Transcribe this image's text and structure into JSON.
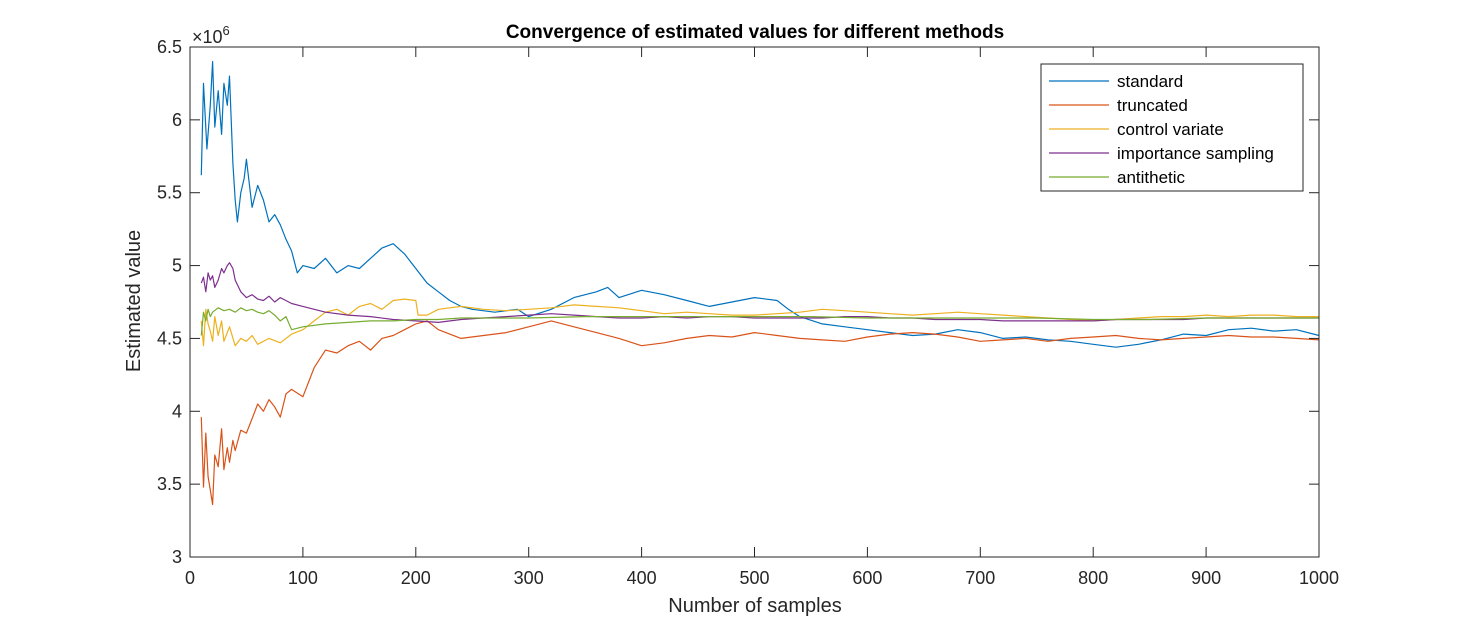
{
  "chart_data": {
    "type": "line",
    "title": "Convergence of estimated values for different methods",
    "xlabel": "Number of samples",
    "ylabel": "Estimated value",
    "y_exponent_label": {
      "base": "×10",
      "exp": "6"
    },
    "xlim": [
      0,
      1000
    ],
    "ylim": [
      3000000,
      6500000
    ],
    "xticks": [
      0,
      100,
      200,
      300,
      400,
      500,
      600,
      700,
      800,
      900,
      1000
    ],
    "xtick_labels": [
      "0",
      "100",
      "200",
      "300",
      "400",
      "500",
      "600",
      "700",
      "800",
      "900",
      "1000"
    ],
    "yticks": [
      3000000,
      3500000,
      4000000,
      4500000,
      5000000,
      5500000,
      6000000,
      6500000
    ],
    "ytick_labels": [
      "3",
      "3.5",
      "4",
      "4.5",
      "5",
      "5.5",
      "6",
      "6.5"
    ],
    "grid": false,
    "legend_position": "top-right",
    "series": [
      {
        "name": "standard",
        "color": "#0072BD",
        "x": [
          10,
          12,
          15,
          18,
          20,
          22,
          25,
          28,
          30,
          33,
          35,
          38,
          40,
          42,
          45,
          48,
          50,
          55,
          60,
          65,
          70,
          75,
          80,
          85,
          90,
          95,
          100,
          110,
          120,
          130,
          140,
          150,
          160,
          170,
          180,
          190,
          200,
          210,
          220,
          230,
          240,
          250,
          270,
          290,
          300,
          320,
          340,
          360,
          370,
          380,
          400,
          420,
          440,
          460,
          480,
          500,
          520,
          530,
          540,
          560,
          580,
          600,
          620,
          640,
          660,
          680,
          700,
          720,
          740,
          760,
          780,
          800,
          820,
          840,
          860,
          880,
          900,
          920,
          940,
          960,
          980,
          1000
        ],
        "y": [
          5620000,
          6250000,
          5800000,
          6100000,
          6400000,
          5950000,
          6200000,
          5900000,
          6250000,
          6100000,
          6300000,
          5700000,
          5450000,
          5300000,
          5500000,
          5600000,
          5730000,
          5400000,
          5550000,
          5450000,
          5300000,
          5350000,
          5280000,
          5180000,
          5100000,
          4950000,
          5000000,
          4980000,
          5050000,
          4950000,
          5000000,
          4980000,
          5050000,
          5120000,
          5150000,
          5080000,
          4980000,
          4880000,
          4820000,
          4760000,
          4720000,
          4700000,
          4680000,
          4700000,
          4650000,
          4700000,
          4780000,
          4820000,
          4850000,
          4780000,
          4830000,
          4800000,
          4760000,
          4720000,
          4750000,
          4780000,
          4760000,
          4700000,
          4650000,
          4600000,
          4580000,
          4560000,
          4540000,
          4520000,
          4530000,
          4560000,
          4540000,
          4500000,
          4510000,
          4490000,
          4480000,
          4460000,
          4440000,
          4460000,
          4490000,
          4530000,
          4520000,
          4560000,
          4570000,
          4550000,
          4560000,
          4520000
        ]
      },
      {
        "name": "truncated",
        "color": "#D95319",
        "x": [
          10,
          12,
          14,
          16,
          18,
          20,
          22,
          25,
          28,
          30,
          33,
          35,
          38,
          40,
          45,
          50,
          55,
          60,
          65,
          70,
          75,
          80,
          85,
          90,
          100,
          110,
          120,
          130,
          140,
          150,
          160,
          170,
          180,
          190,
          200,
          210,
          220,
          240,
          260,
          280,
          300,
          320,
          340,
          360,
          380,
          400,
          420,
          440,
          460,
          480,
          500,
          520,
          540,
          560,
          580,
          600,
          620,
          640,
          660,
          680,
          700,
          720,
          740,
          760,
          780,
          800,
          820,
          840,
          860,
          880,
          900,
          920,
          940,
          960,
          980,
          1000
        ],
        "y": [
          3960000,
          3480000,
          3850000,
          3550000,
          3460000,
          3360000,
          3700000,
          3620000,
          3880000,
          3600000,
          3750000,
          3650000,
          3800000,
          3730000,
          3870000,
          3850000,
          3950000,
          4050000,
          4000000,
          4080000,
          4030000,
          3960000,
          4120000,
          4150000,
          4100000,
          4300000,
          4420000,
          4400000,
          4450000,
          4480000,
          4420000,
          4500000,
          4520000,
          4560000,
          4600000,
          4620000,
          4560000,
          4500000,
          4520000,
          4540000,
          4580000,
          4620000,
          4580000,
          4540000,
          4500000,
          4450000,
          4470000,
          4500000,
          4520000,
          4510000,
          4540000,
          4520000,
          4500000,
          4490000,
          4480000,
          4510000,
          4530000,
          4540000,
          4530000,
          4510000,
          4480000,
          4490000,
          4500000,
          4480000,
          4500000,
          4510000,
          4520000,
          4500000,
          4490000,
          4500000,
          4510000,
          4520000,
          4510000,
          4510000,
          4500000,
          4490000
        ]
      },
      {
        "name": "control variate",
        "color": "#EDB120",
        "x": [
          10,
          12,
          14,
          16,
          18,
          20,
          22,
          25,
          28,
          30,
          35,
          40,
          45,
          50,
          55,
          60,
          70,
          80,
          90,
          100,
          110,
          120,
          130,
          140,
          150,
          160,
          170,
          180,
          190,
          200,
          202,
          210,
          220,
          240,
          260,
          280,
          300,
          320,
          340,
          360,
          380,
          400,
          420,
          440,
          460,
          480,
          500,
          520,
          540,
          560,
          580,
          600,
          620,
          640,
          660,
          680,
          700,
          720,
          740,
          760,
          780,
          800,
          820,
          840,
          860,
          880,
          900,
          920,
          940,
          960,
          980,
          1000
        ],
        "y": [
          4620000,
          4450000,
          4700000,
          4600000,
          4550000,
          4480000,
          4650000,
          4520000,
          4620000,
          4480000,
          4580000,
          4450000,
          4500000,
          4480000,
          4520000,
          4460000,
          4500000,
          4470000,
          4530000,
          4560000,
          4620000,
          4680000,
          4700000,
          4660000,
          4720000,
          4740000,
          4700000,
          4760000,
          4770000,
          4760000,
          4660000,
          4660000,
          4700000,
          4720000,
          4700000,
          4690000,
          4700000,
          4710000,
          4730000,
          4720000,
          4710000,
          4690000,
          4670000,
          4680000,
          4670000,
          4660000,
          4660000,
          4670000,
          4680000,
          4700000,
          4690000,
          4680000,
          4670000,
          4660000,
          4670000,
          4680000,
          4670000,
          4660000,
          4650000,
          4640000,
          4630000,
          4620000,
          4630000,
          4640000,
          4650000,
          4650000,
          4660000,
          4650000,
          4660000,
          4660000,
          4650000,
          4650000
        ]
      },
      {
        "name": "importance sampling",
        "color": "#7E2F8E",
        "x": [
          10,
          12,
          14,
          16,
          18,
          20,
          22,
          25,
          28,
          30,
          33,
          35,
          38,
          40,
          45,
          50,
          55,
          60,
          65,
          70,
          75,
          80,
          90,
          100,
          110,
          120,
          140,
          160,
          180,
          200,
          220,
          240,
          260,
          280,
          300,
          320,
          340,
          360,
          380,
          400,
          420,
          440,
          460,
          480,
          500,
          520,
          540,
          560,
          580,
          600,
          620,
          640,
          660,
          680,
          700,
          720,
          740,
          760,
          780,
          800,
          820,
          840,
          860,
          880,
          900,
          920,
          940,
          960,
          980,
          1000
        ],
        "y": [
          4880000,
          4920000,
          4820000,
          4950000,
          4900000,
          4930000,
          4850000,
          4900000,
          4980000,
          4950000,
          5000000,
          5020000,
          4980000,
          4900000,
          4820000,
          4780000,
          4800000,
          4770000,
          4760000,
          4790000,
          4750000,
          4780000,
          4740000,
          4720000,
          4700000,
          4680000,
          4660000,
          4650000,
          4630000,
          4620000,
          4610000,
          4630000,
          4640000,
          4650000,
          4660000,
          4670000,
          4660000,
          4650000,
          4640000,
          4640000,
          4650000,
          4640000,
          4650000,
          4650000,
          4640000,
          4640000,
          4640000,
          4640000,
          4650000,
          4650000,
          4640000,
          4640000,
          4630000,
          4630000,
          4630000,
          4620000,
          4620000,
          4620000,
          4620000,
          4620000,
          4630000,
          4630000,
          4630000,
          4630000,
          4640000,
          4640000,
          4640000,
          4640000,
          4640000,
          4640000
        ]
      },
      {
        "name": "antithetic",
        "color": "#77AC30",
        "x": [
          10,
          12,
          14,
          16,
          18,
          20,
          25,
          30,
          35,
          40,
          45,
          50,
          55,
          60,
          65,
          70,
          75,
          80,
          85,
          90,
          100,
          120,
          140,
          160,
          180,
          200,
          220,
          240,
          260,
          280,
          300,
          350,
          400,
          450,
          500,
          550,
          600,
          650,
          700,
          750,
          800,
          850,
          900,
          950,
          1000
        ],
        "y": [
          4520000,
          4680000,
          4620000,
          4700000,
          4650000,
          4680000,
          4710000,
          4690000,
          4700000,
          4680000,
          4710000,
          4690000,
          4700000,
          4680000,
          4670000,
          4690000,
          4660000,
          4620000,
          4650000,
          4560000,
          4580000,
          4600000,
          4610000,
          4620000,
          4620000,
          4630000,
          4630000,
          4640000,
          4640000,
          4640000,
          4640000,
          4650000,
          4650000,
          4650000,
          4650000,
          4650000,
          4640000,
          4640000,
          4640000,
          4640000,
          4630000,
          4630000,
          4640000,
          4640000,
          4640000
        ]
      }
    ]
  }
}
